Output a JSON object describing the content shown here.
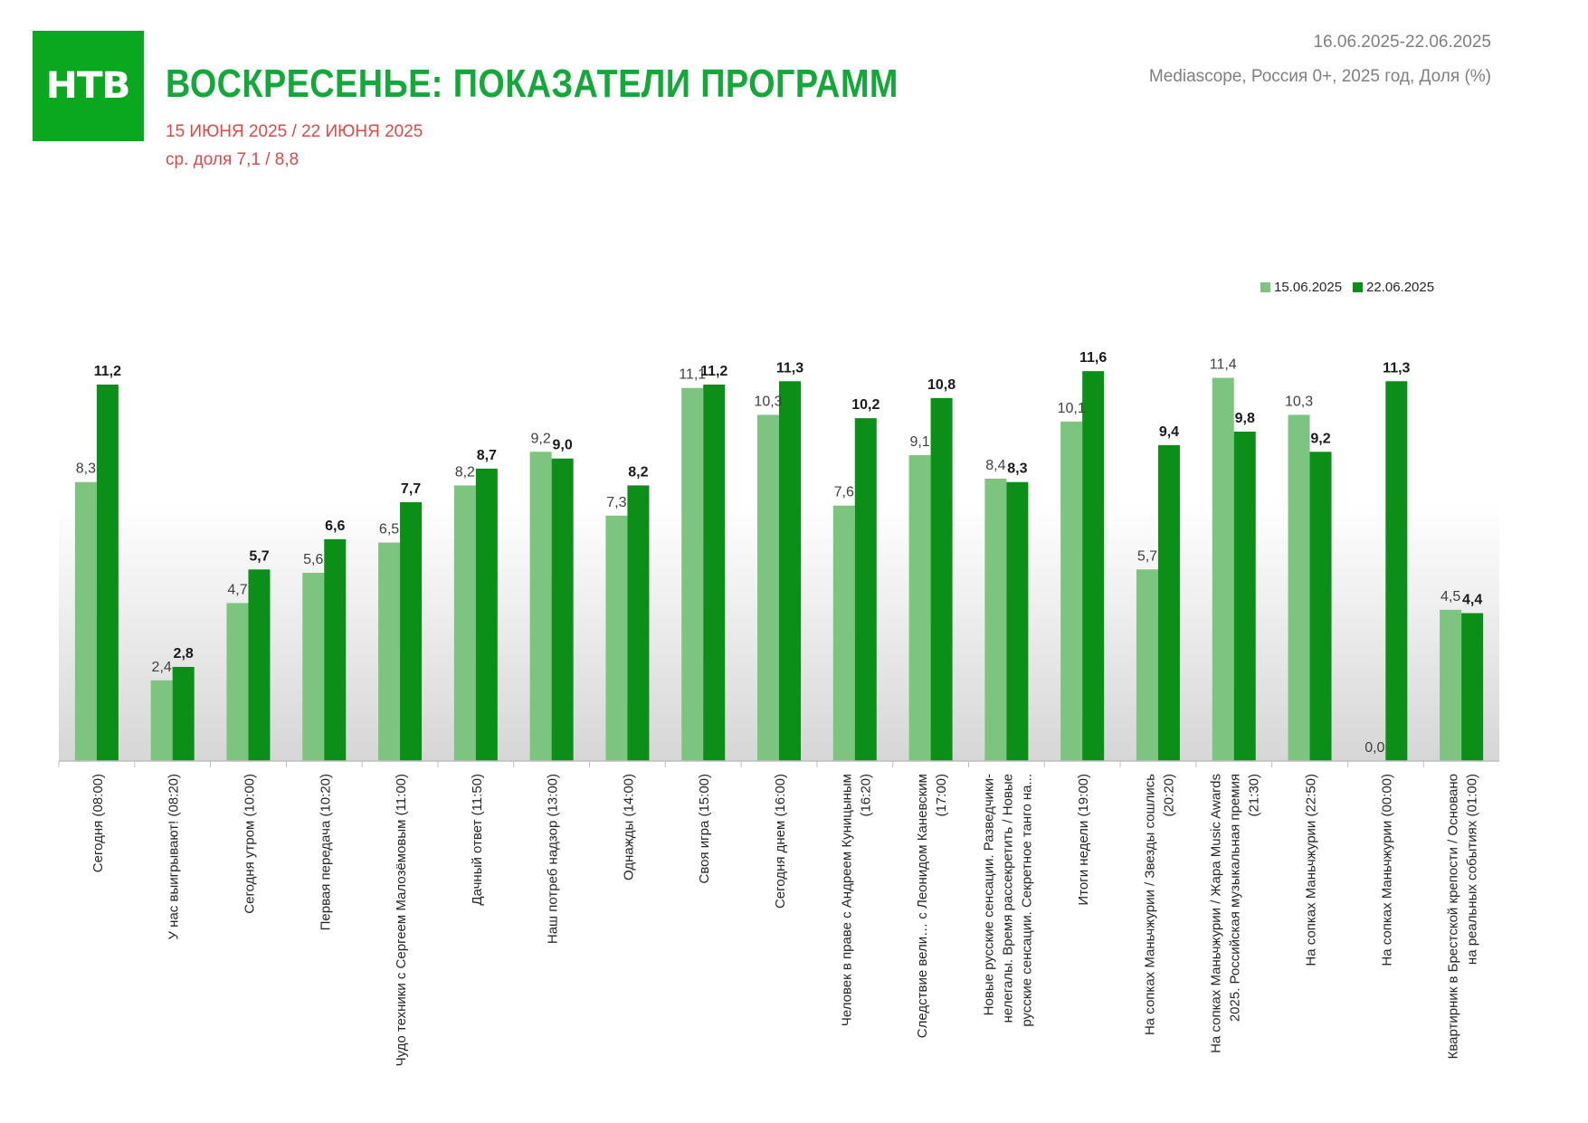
{
  "header": {
    "logo_text": "НТВ",
    "title": "ВОСКРЕСЕНЬЕ: ПОКАЗАТЕЛИ ПРОГРАММ",
    "dates_line": "15 ИЮНЯ 2025 / 22 ИЮНЯ 2025",
    "avg_line": "ср. доля 7,1 / 8,8",
    "period": "16.06.2025-22.06.2025",
    "source": "Mediascope, Россия 0+, 2025 год,  Доля (%)"
  },
  "colors": {
    "brand_green": "#0aa81e",
    "title_green": "#14a83a",
    "subtitle_red": "#e04848",
    "series_1": "#7cc47f",
    "series_2": "#0b8f18"
  },
  "chart_data": {
    "type": "bar",
    "legend_position": "top-right",
    "ylim": [
      0,
      12.5
    ],
    "grid": false,
    "categories": [
      [
        "Сегодня (08:00)"
      ],
      [
        "У нас выигрывают! (08:20)"
      ],
      [
        "Сегодня утром (10:00)"
      ],
      [
        "Первая передача (10:20)"
      ],
      [
        "Чудо техники с Сергеем Малозёмовым (11:00)"
      ],
      [
        "Дачный ответ (11:50)"
      ],
      [
        "Наш потреб надзор (13:00)"
      ],
      [
        "Однажды (14:00)"
      ],
      [
        "Своя игра (15:00)"
      ],
      [
        "Сегодня днем (16:00)"
      ],
      [
        "Человек в праве с Андреем Куницыным",
        "(16:20)"
      ],
      [
        "Следствие вели… с Леонидом Каневским",
        "(17:00)"
      ],
      [
        "Новые русские сенсации. Разведчики-",
        "нелегалы. Время рассекретить / Новые",
        "русские сенсации. Секретное танго на..."
      ],
      [
        "Итоги недели (19:00)"
      ],
      [
        "На сопках Маньчжурии / Звезды сошлись",
        "(20:20)"
      ],
      [
        "На сопках Маньчжурии / Жара Music Awards",
        "2025. Российская музыкальная премия",
        "(21:30)"
      ],
      [
        "На сопках Маньчжурии (22:50)"
      ],
      [
        "На сопках Маньчжурии (00:00)"
      ],
      [
        "Квартирник в Брестской крепости / Основано",
        "на реальных событиях (01:00)"
      ]
    ],
    "series": [
      {
        "name": "15.06.2025",
        "values": [
          8.3,
          2.4,
          4.7,
          5.6,
          6.5,
          8.2,
          9.2,
          7.3,
          11.1,
          10.3,
          7.6,
          9.1,
          8.4,
          10.1,
          5.7,
          11.4,
          10.3,
          0.0,
          4.5
        ],
        "labels": [
          "8,3",
          "2,4",
          "4,7",
          "5,6",
          "6,5",
          "8,2",
          "9,2",
          "7,3",
          "11,1",
          "10,3",
          "7,6",
          "9,1",
          "8,4",
          "10,1",
          "5,7",
          "11,4",
          "10,3",
          "0,0",
          "4,5"
        ]
      },
      {
        "name": "22.06.2025",
        "values": [
          11.2,
          2.8,
          5.7,
          6.6,
          7.7,
          8.7,
          9.0,
          8.2,
          11.2,
          11.3,
          10.2,
          10.8,
          8.3,
          11.6,
          9.4,
          9.8,
          9.2,
          11.3,
          4.4
        ],
        "labels": [
          "11,2",
          "2,8",
          "5,7",
          "6,6",
          "7,7",
          "8,7",
          "9,0",
          "8,2",
          "11,2",
          "11,3",
          "10,2",
          "10,8",
          "8,3",
          "11,6",
          "9,4",
          "9,8",
          "9,2",
          "11,3",
          "4,4"
        ]
      }
    ]
  }
}
